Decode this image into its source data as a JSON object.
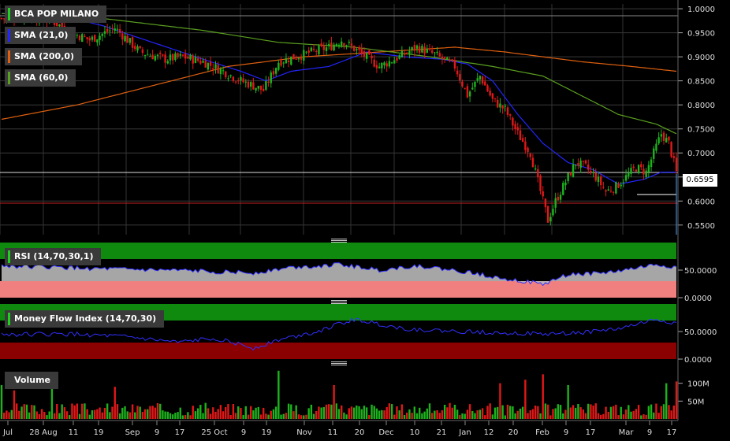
{
  "legends": {
    "title": "BCA POP MILANO",
    "sma21": "SMA (21,0)",
    "sma200": "SMA (200,0)",
    "sma60": "SMA (60,0)",
    "rsi": "RSI (14,70,30,1)",
    "mfi": "Money Flow Index (14,70,30)",
    "volume": "Volume"
  },
  "last_price_label": "0.6595",
  "colors": {
    "up": "#1db31d",
    "down": "#e01818",
    "sma21": "#2424ff",
    "sma200": "#e06010",
    "sma60": "#5aa020",
    "overbought": "#0f8a0f",
    "oversold_rsi": "#f08080",
    "oversold_mfi": "#8b0000",
    "oscillator_line": "#3030ff"
  },
  "chart_data": [
    {
      "type": "candlestick",
      "title": "BCA POP MILANO",
      "ylim": [
        0.53,
        1.01
      ],
      "yticks": [
        "1.0000",
        "0.9500",
        "0.9000",
        "0.8500",
        "0.8000",
        "0.7500",
        "0.7000",
        "0.6500",
        "0.6000",
        "0.5500"
      ],
      "x_ticks": [
        "Jul",
        "28 Aug",
        "11",
        "19",
        "Sep",
        "9",
        "17",
        "25 Oct",
        "9",
        "19",
        "Nov",
        "11",
        "20",
        "Dec",
        "10",
        "21",
        "Jan",
        "12",
        "20",
        "Feb",
        "9",
        "17",
        "Mar",
        "9",
        "17"
      ],
      "last_price": 0.6595,
      "close_anchors": [
        [
          0,
          0.98
        ],
        [
          10,
          0.985
        ],
        [
          20,
          0.975
        ],
        [
          28,
          0.95
        ],
        [
          35,
          0.935
        ],
        [
          45,
          0.96
        ],
        [
          55,
          0.91
        ],
        [
          65,
          0.895
        ],
        [
          72,
          0.9
        ],
        [
          80,
          0.89
        ],
        [
          88,
          0.87
        ],
        [
          95,
          0.85
        ],
        [
          100,
          0.84
        ],
        [
          104,
          0.83
        ],
        [
          110,
          0.89
        ],
        [
          120,
          0.905
        ],
        [
          130,
          0.92
        ],
        [
          135,
          0.935
        ],
        [
          142,
          0.91
        ],
        [
          150,
          0.88
        ],
        [
          158,
          0.9
        ],
        [
          165,
          0.92
        ],
        [
          172,
          0.905
        ],
        [
          180,
          0.88
        ],
        [
          185,
          0.82
        ],
        [
          190,
          0.86
        ],
        [
          195,
          0.81
        ],
        [
          200,
          0.79
        ],
        [
          205,
          0.74
        ],
        [
          210,
          0.7
        ],
        [
          214,
          0.62
        ],
        [
          217,
          0.56
        ],
        [
          220,
          0.6
        ],
        [
          224,
          0.64
        ],
        [
          228,
          0.68
        ],
        [
          232,
          0.67
        ],
        [
          236,
          0.65
        ],
        [
          240,
          0.62
        ],
        [
          244,
          0.63
        ],
        [
          248,
          0.65
        ],
        [
          252,
          0.67
        ],
        [
          256,
          0.66
        ],
        [
          259,
          0.7
        ],
        [
          262,
          0.74
        ],
        [
          265,
          0.72
        ],
        [
          268,
          0.6595
        ]
      ],
      "series": [
        {
          "name": "SMA (21,0)",
          "anchors": [
            [
              0,
              0.99
            ],
            [
              20,
              0.99
            ],
            [
              40,
              0.965
            ],
            [
              60,
              0.93
            ],
            [
              80,
              0.895
            ],
            [
              95,
              0.87
            ],
            [
              105,
              0.85
            ],
            [
              115,
              0.87
            ],
            [
              130,
              0.88
            ],
            [
              145,
              0.91
            ],
            [
              160,
              0.9
            ],
            [
              175,
              0.895
            ],
            [
              185,
              0.885
            ],
            [
              195,
              0.85
            ],
            [
              205,
              0.78
            ],
            [
              215,
              0.72
            ],
            [
              225,
              0.68
            ],
            [
              235,
              0.665
            ],
            [
              245,
              0.635
            ],
            [
              255,
              0.645
            ],
            [
              262,
              0.66
            ],
            [
              268,
              0.66
            ]
          ]
        },
        {
          "name": "SMA (200,0)",
          "anchors": [
            [
              0,
              0.77
            ],
            [
              30,
              0.8
            ],
            [
              60,
              0.84
            ],
            [
              90,
              0.88
            ],
            [
              120,
              0.9
            ],
            [
              150,
              0.91
            ],
            [
              180,
              0.92
            ],
            [
              200,
              0.91
            ],
            [
              230,
              0.89
            ],
            [
              250,
              0.88
            ],
            [
              268,
              0.87
            ]
          ]
        },
        {
          "name": "SMA (60,0)",
          "anchors": [
            [
              0,
              0.99
            ],
            [
              40,
              0.98
            ],
            [
              80,
              0.955
            ],
            [
              110,
              0.93
            ],
            [
              140,
              0.92
            ],
            [
              170,
              0.9
            ],
            [
              195,
              0.88
            ],
            [
              215,
              0.86
            ],
            [
              230,
              0.82
            ],
            [
              245,
              0.78
            ],
            [
              260,
              0.76
            ],
            [
              268,
              0.74
            ]
          ]
        }
      ]
    },
    {
      "type": "line",
      "title": "RSI (14,70,30,1)",
      "ylim": [
        0,
        100
      ],
      "yticks": [
        "50.0000",
        "0.0000"
      ],
      "levels": [
        70,
        30
      ],
      "anchors": [
        [
          0,
          58
        ],
        [
          20,
          55
        ],
        [
          40,
          52
        ],
        [
          60,
          50
        ],
        [
          80,
          48
        ],
        [
          100,
          45
        ],
        [
          115,
          55
        ],
        [
          135,
          60
        ],
        [
          150,
          50
        ],
        [
          165,
          58
        ],
        [
          185,
          46
        ],
        [
          200,
          35
        ],
        [
          215,
          24
        ],
        [
          225,
          42
        ],
        [
          240,
          45
        ],
        [
          250,
          52
        ],
        [
          260,
          60
        ],
        [
          268,
          55
        ]
      ]
    },
    {
      "type": "line",
      "title": "Money Flow Index (14,70,30)",
      "ylim": [
        0,
        100
      ],
      "yticks": [
        "50.0000",
        "0.0000"
      ],
      "levels": [
        70,
        30
      ],
      "anchors": [
        [
          0,
          45
        ],
        [
          30,
          45
        ],
        [
          50,
          40
        ],
        [
          70,
          30
        ],
        [
          85,
          38
        ],
        [
          100,
          20
        ],
        [
          110,
          35
        ],
        [
          125,
          50
        ],
        [
          140,
          72
        ],
        [
          160,
          55
        ],
        [
          180,
          50
        ],
        [
          200,
          48
        ],
        [
          215,
          45
        ],
        [
          230,
          48
        ],
        [
          245,
          55
        ],
        [
          260,
          72
        ],
        [
          268,
          65
        ]
      ]
    },
    {
      "type": "bar",
      "title": "Volume",
      "yticks": [
        "100M",
        "50M"
      ],
      "ylim": [
        0,
        150000000
      ],
      "spikes": [
        [
          0,
          95000000
        ],
        [
          5,
          80000000
        ],
        [
          20,
          110000000
        ],
        [
          45,
          90000000
        ],
        [
          110,
          135000000
        ],
        [
          132,
          95000000
        ],
        [
          198,
          100000000
        ],
        [
          208,
          110000000
        ],
        [
          215,
          125000000
        ],
        [
          225,
          95000000
        ],
        [
          264,
          100000000
        ],
        [
          268,
          105000000
        ]
      ]
    }
  ]
}
